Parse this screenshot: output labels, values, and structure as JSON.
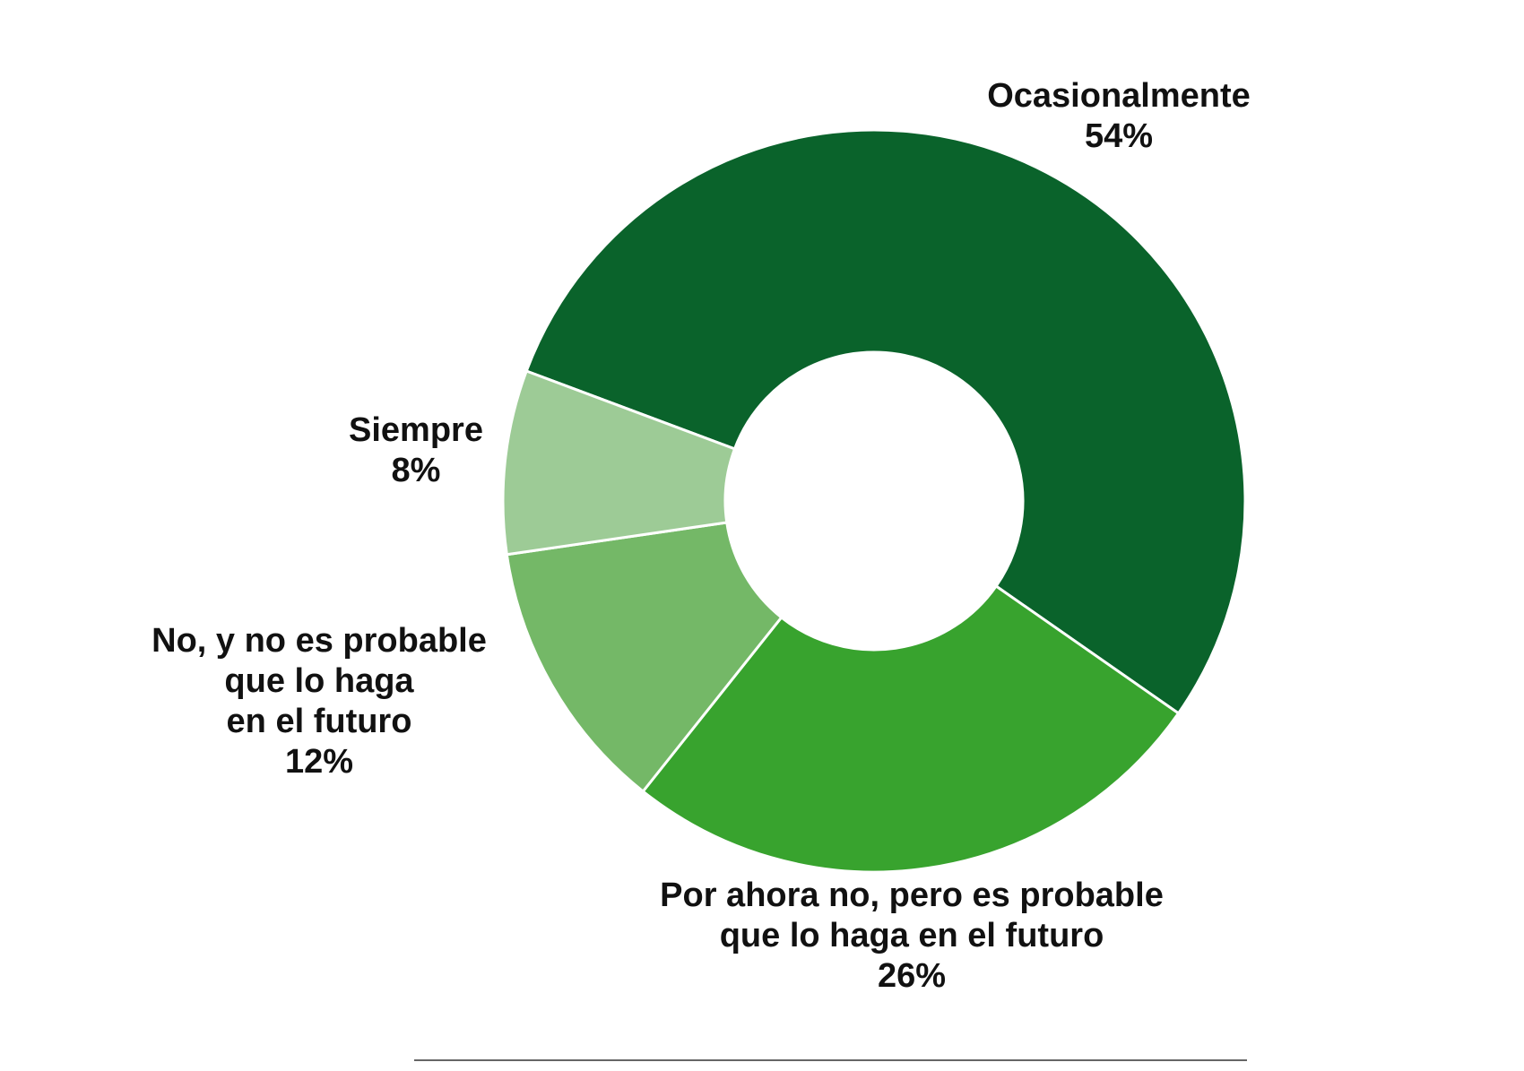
{
  "chart_data": {
    "type": "donut",
    "categories": [
      [
        "Ocasionalmente"
      ],
      [
        "Por ahora no, pero es probable",
        "que lo haga en el futuro"
      ],
      [
        "No, y no es probable",
        "que lo haga",
        "en el futuro"
      ],
      [
        "Siempre"
      ]
    ],
    "values": [
      54,
      26,
      12,
      8
    ],
    "value_labels": [
      "54%",
      "26%",
      "12%",
      "8%"
    ],
    "colors": [
      "#0a632b",
      "#38a32e",
      "#74b867",
      "#9dcb96"
    ]
  }
}
